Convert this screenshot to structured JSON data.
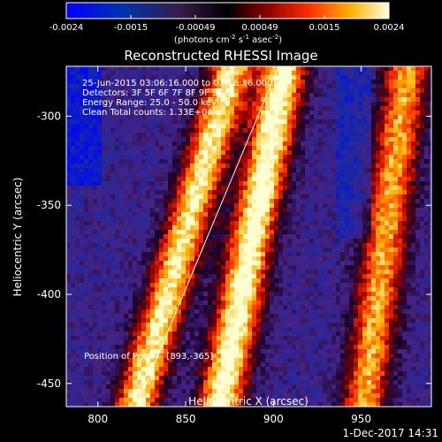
{
  "colorbar": {
    "tick_labels": [
      "-0.0024",
      "-0.0015",
      "-0.00049",
      "0.00049",
      "0.0015",
      "0.0024"
    ],
    "units_prefix": "(photons cm",
    "units_exp1": "-2",
    "units_mid": " s",
    "units_exp2": "-1",
    "units_mid2": " asec",
    "units_exp3": "-2",
    "units_suffix": ")",
    "range": [
      -0.0024,
      0.0024
    ]
  },
  "chart_data": {
    "type": "heatmap",
    "title": "Reconstructed RHESSI Image",
    "xlabel": "Heliocentric X (arcsec)",
    "ylabel": "Heliocentric Y (arcsec)",
    "xlim": [
      782,
      990
    ],
    "ylim": [
      -463,
      -272
    ],
    "x_ticks": [
      800,
      850,
      900,
      950
    ],
    "y_ticks": [
      -300,
      -350,
      -400,
      -450
    ],
    "value_range": [
      -0.0024,
      0.0024
    ],
    "description_bands": [
      {
        "x_at_top": 875,
        "x_at_bottom": 820,
        "intensity": "high"
      },
      {
        "x_at_top": 905,
        "x_at_bottom": 868,
        "intensity": "peak"
      },
      {
        "x_at_top": 975,
        "x_at_bottom": 950,
        "intensity": "medium"
      }
    ],
    "limb_line": {
      "x_top": 903,
      "y_top": -272,
      "x_bottom": 822,
      "y_bottom": -463
    },
    "annotations": {
      "line1": "25-Jun-2015 03:06:16.000 to 03:16:16.000",
      "line2": "Detectors: 3F 5F 6F 7F 8F 9F 9F 0",
      "line3": "Energy Range: 25.0 - 50.0 keV",
      "line4": "Clean     Total counts: 1.33E+04",
      "peak": "Position of Peak = [893,-365]"
    }
  },
  "footer": {
    "date": "1-Dec-2017 14:31"
  }
}
